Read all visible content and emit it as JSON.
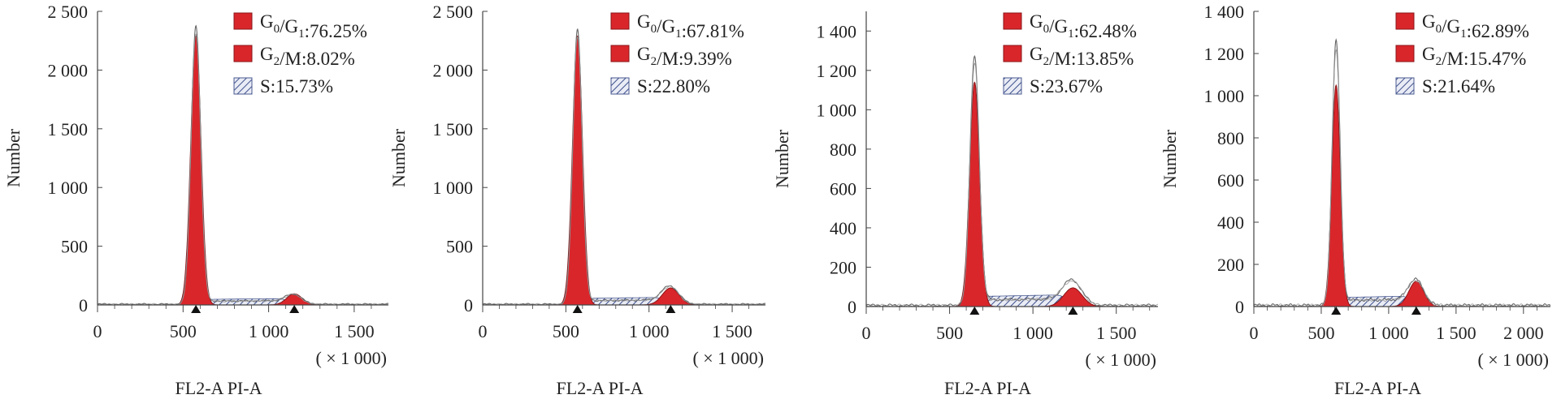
{
  "chart_data": [
    {
      "type": "area",
      "xlabel": "FL2-A PI-A",
      "x_unit": "( × 1 000)",
      "ylabel": "Number",
      "xlim": [
        0,
        1700
      ],
      "ylim": [
        0,
        2500
      ],
      "x_ticks": [
        0,
        500,
        1000,
        1500
      ],
      "x_tick_labels": [
        "0",
        "500",
        "1 000",
        "1 500"
      ],
      "y_ticks": [
        0,
        500,
        1000,
        1500,
        2000,
        2500
      ],
      "y_tick_labels": [
        "0",
        "500",
        "1 000",
        "1 500",
        "2 000",
        "2 500"
      ],
      "g1": {
        "center": 575,
        "width": 30,
        "height": 2290
      },
      "g2": {
        "center": 1150,
        "width": 45,
        "height": 95
      },
      "s": {
        "start": 600,
        "end": 1120,
        "level": 55
      },
      "raw_peaks": [
        2370,
        110
      ],
      "markers": [
        575,
        1150
      ],
      "legend": [
        {
          "name": "G0/G1",
          "main": "G",
          "sub": "0",
          "mid": "/G",
          "sub2": "1",
          "value": ":76.25%",
          "fill": "solid"
        },
        {
          "name": "G2/M",
          "main": "G",
          "sub": "2",
          "mid": "/M",
          "sub2": "",
          "value": ":8.02%",
          "fill": "solid"
        },
        {
          "name": "S",
          "main": "S",
          "sub": "",
          "mid": "",
          "sub2": "",
          "value": ":15.73%",
          "fill": "hatch"
        }
      ]
    },
    {
      "type": "area",
      "xlabel": "FL2-A PI-A",
      "x_unit": "( × 1 000)",
      "ylabel": "Number",
      "xlim": [
        0,
        1700
      ],
      "ylim": [
        0,
        2500
      ],
      "x_ticks": [
        0,
        500,
        1000,
        1500
      ],
      "x_tick_labels": [
        "0",
        "500",
        "1 000",
        "1 500"
      ],
      "y_ticks": [
        0,
        500,
        1000,
        1500,
        2000,
        2500
      ],
      "y_tick_labels": [
        "0",
        "500",
        "1 000",
        "1 500",
        "2 000",
        "2 500"
      ],
      "g1": {
        "center": 570,
        "width": 30,
        "height": 2290
      },
      "g2": {
        "center": 1130,
        "width": 50,
        "height": 145
      },
      "s": {
        "start": 595,
        "end": 1100,
        "level": 65
      },
      "raw_peaks": [
        2340,
        190
      ],
      "markers": [
        570,
        1130
      ],
      "legend": [
        {
          "name": "G0/G1",
          "main": "G",
          "sub": "0",
          "mid": "/G",
          "sub2": "1",
          "value": ":67.81%",
          "fill": "solid"
        },
        {
          "name": "G2/M",
          "main": "G",
          "sub": "2",
          "mid": "/M",
          "sub2": "",
          "value": ":9.39%",
          "fill": "solid"
        },
        {
          "name": "S",
          "main": "S",
          "sub": "",
          "mid": "",
          "sub2": "",
          "value": ":22.80%",
          "fill": "hatch"
        }
      ]
    },
    {
      "type": "area",
      "xlabel": "FL2-A PI-A",
      "x_unit": "( × 1 000)",
      "ylabel": "Number",
      "xlim": [
        0,
        1750
      ],
      "ylim": [
        0,
        1500
      ],
      "x_ticks": [
        0,
        500,
        1000,
        1500
      ],
      "x_tick_labels": [
        "0",
        "500",
        "1 000",
        "1 500"
      ],
      "y_ticks": [
        0,
        200,
        400,
        600,
        800,
        1000,
        1200,
        1400
      ],
      "y_tick_labels": [
        "0",
        "200",
        "400",
        "600",
        "800",
        "1 000",
        "1 200",
        "1 400"
      ],
      "g1": {
        "center": 650,
        "width": 30,
        "height": 1140
      },
      "g2": {
        "center": 1240,
        "width": 55,
        "height": 95
      },
      "s": {
        "start": 660,
        "end": 1210,
        "level": 60
      },
      "raw_peaks": [
        1260,
        170
      ],
      "markers": [
        650,
        1240
      ],
      "legend": [
        {
          "name": "G0/G1",
          "main": "G",
          "sub": "0",
          "mid": "/G",
          "sub2": "1",
          "value": ":62.48%",
          "fill": "solid"
        },
        {
          "name": "G2/M",
          "main": "G",
          "sub": "2",
          "mid": "/M",
          "sub2": "",
          "value": ":13.85%",
          "fill": "solid"
        },
        {
          "name": "S",
          "main": "S",
          "sub": "",
          "mid": "",
          "sub2": "",
          "value": ":23.67%",
          "fill": "hatch"
        }
      ]
    },
    {
      "type": "area",
      "xlabel": "FL2-A PI-A",
      "x_unit": "( × 1 000)",
      "ylabel": "Number",
      "xlim": [
        0,
        2200
      ],
      "ylim": [
        0,
        1400
      ],
      "x_ticks": [
        0,
        500,
        1000,
        1500,
        2000
      ],
      "x_tick_labels": [
        "0",
        "500",
        "1 000",
        "1 500",
        "2 000"
      ],
      "y_ticks": [
        0,
        200,
        400,
        600,
        800,
        1000,
        1200,
        1400
      ],
      "y_tick_labels": [
        "0",
        "200",
        "400",
        "600",
        "800",
        "1 000",
        "1 200",
        "1 400"
      ],
      "g1": {
        "center": 610,
        "width": 32,
        "height": 1050
      },
      "g2": {
        "center": 1205,
        "width": 55,
        "height": 120
      },
      "s": {
        "start": 625,
        "end": 1170,
        "level": 50
      },
      "raw_peaks": [
        1250,
        150
      ],
      "markers": [
        610,
        1205
      ],
      "legend": [
        {
          "name": "G0/G1",
          "main": "G",
          "sub": "0",
          "mid": "/G",
          "sub2": "1",
          "value": ":62.89%",
          "fill": "solid"
        },
        {
          "name": "G2/M",
          "main": "G",
          "sub": "2",
          "mid": "/M",
          "sub2": "",
          "value": ":15.47%",
          "fill": "solid"
        },
        {
          "name": "S",
          "main": "S",
          "sub": "",
          "mid": "",
          "sub2": "",
          "value": ":21.64%",
          "fill": "hatch"
        }
      ]
    }
  ]
}
